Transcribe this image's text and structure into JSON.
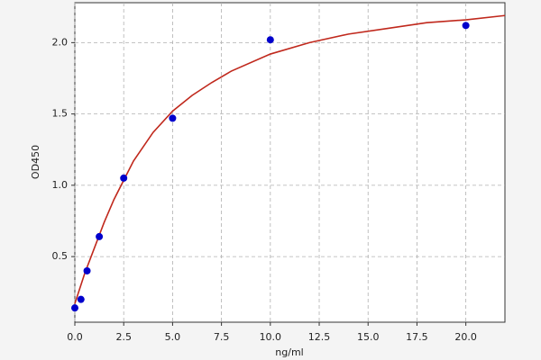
{
  "chart_data": {
    "type": "scatter",
    "x_label": "ng/ml",
    "y_label": "OD450",
    "points": {
      "color": "#0000cc",
      "x": [
        0,
        0.3125,
        0.625,
        1.25,
        2.5,
        5,
        10,
        20
      ],
      "values": [
        0.14,
        0.2,
        0.4,
        0.64,
        1.05,
        1.47,
        2.02,
        2.12
      ]
    },
    "fit": {
      "color": "#c0281c",
      "x": [
        0,
        0.5,
        1,
        1.5,
        2,
        3,
        4,
        5,
        6,
        7,
        8,
        10,
        12,
        14,
        16,
        18,
        20,
        22
      ],
      "values": [
        0.17,
        0.38,
        0.56,
        0.74,
        0.9,
        1.17,
        1.37,
        1.52,
        1.63,
        1.72,
        1.8,
        1.92,
        2.0,
        2.06,
        2.1,
        2.14,
        2.16,
        2.19
      ]
    },
    "xlim": [
      0,
      22
    ],
    "ylim": [
      0.04,
      2.28
    ],
    "xticks": [
      {
        "value": 0,
        "label": "0.0"
      },
      2.5,
      {
        "value": 5,
        "label": "5.0"
      },
      7.5,
      {
        "value": 10,
        "label": "10.0"
      },
      12.5,
      {
        "value": 15,
        "label": "15.0"
      },
      17.5,
      {
        "value": 20,
        "label": "20.0"
      }
    ],
    "yticks": [
      0.5,
      {
        "value": 1,
        "label": "1.0"
      },
      1.5,
      {
        "value": 2,
        "label": "2.0"
      }
    ],
    "grid": true
  }
}
